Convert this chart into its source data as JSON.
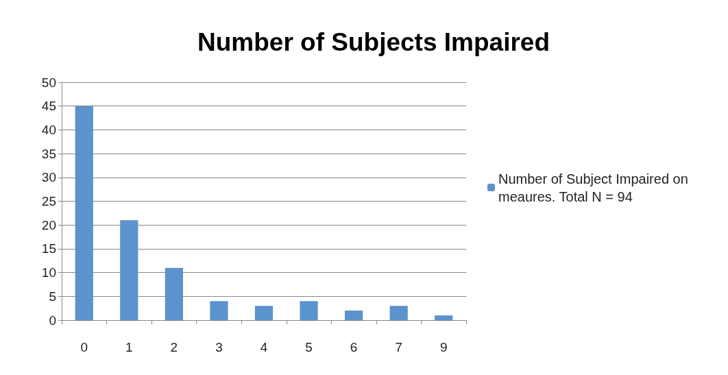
{
  "chart_data": {
    "type": "bar",
    "title": "Number of Subjects Impaired",
    "categories": [
      "0",
      "1",
      "2",
      "3",
      "4",
      "5",
      "6",
      "7",
      "9"
    ],
    "series": [
      {
        "name": "Number of Subject Impaired on meaures. Total N = 94",
        "color": "#5b93cc",
        "values": [
          45,
          21,
          11,
          4,
          3,
          4,
          2,
          3,
          1
        ]
      }
    ],
    "ylim": [
      0,
      50
    ],
    "yticks": [
      0,
      5,
      10,
      15,
      20,
      25,
      30,
      35,
      40,
      45,
      50
    ],
    "grid": "y",
    "legend": "right"
  }
}
